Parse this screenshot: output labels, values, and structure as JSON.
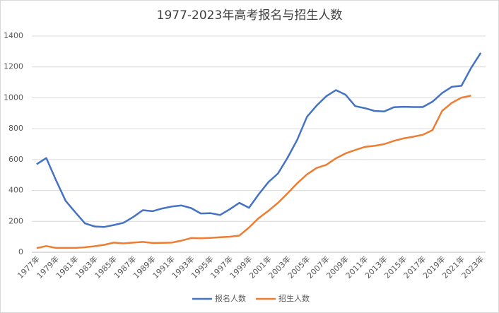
{
  "chart_data": {
    "type": "line",
    "title": "1977-2023年高考报名与招生人数",
    "categories": [
      "1977年",
      null,
      "1979年",
      null,
      "1981年",
      null,
      "1983年",
      null,
      "1985年",
      null,
      "1987年",
      null,
      "1989年",
      null,
      "1991年",
      null,
      "1993年",
      null,
      "1995年",
      null,
      "1997年",
      null,
      "1999年",
      null,
      "2001年",
      null,
      "2003年",
      null,
      "2005年",
      null,
      "2007年",
      null,
      "2009年",
      null,
      "2011年",
      null,
      "2013年",
      null,
      "2015年",
      null,
      "2017年",
      null,
      "2019年",
      null,
      "2021年",
      null,
      "2023年"
    ],
    "series": [
      {
        "name": "报名人数",
        "color": "#4472c4",
        "values": [
          570,
          610,
          468,
          333,
          259,
          187,
          167,
          164,
          176,
          191,
          228,
          272,
          266,
          283,
          296,
          303,
          286,
          251,
          253,
          241,
          278,
          320,
          288,
          375,
          454,
          510,
          613,
          729,
          877,
          950,
          1010,
          1050,
          1020,
          946,
          933,
          915,
          912,
          939,
          942,
          940,
          940,
          975,
          1031,
          1071,
          1078,
          1193,
          1291
        ]
      },
      {
        "name": "招生人数",
        "color": "#ed7d31",
        "values": [
          27,
          40,
          28,
          28,
          28,
          32,
          39,
          48,
          62,
          57,
          62,
          67,
          60,
          61,
          62,
          75,
          92,
          90,
          93,
          97,
          100,
          108,
          160,
          221,
          268,
          320,
          382,
          447,
          504,
          546,
          566,
          608,
          640,
          662,
          682,
          689,
          700,
          721,
          737,
          748,
          761,
          791,
          915,
          967,
          1001,
          1014,
          null
        ]
      }
    ],
    "ylim": [
      0,
      1400
    ],
    "yticks": [
      0,
      200,
      400,
      600,
      800,
      1000,
      1200,
      1400
    ],
    "grid": true,
    "legend": "bottom"
  }
}
